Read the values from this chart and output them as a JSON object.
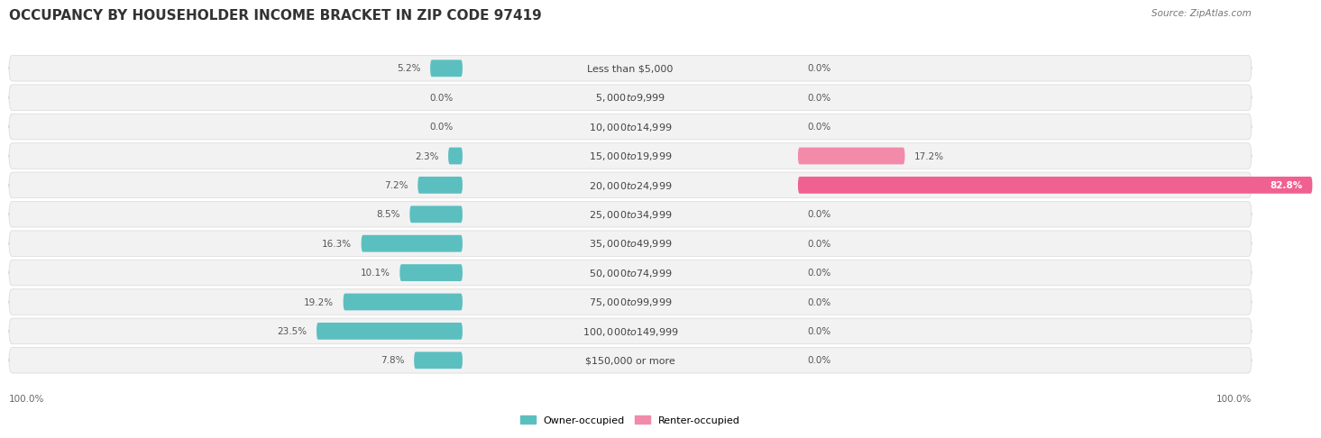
{
  "title": "OCCUPANCY BY HOUSEHOLDER INCOME BRACKET IN ZIP CODE 97419",
  "source": "Source: ZipAtlas.com",
  "categories": [
    "Less than $5,000",
    "$5,000 to $9,999",
    "$10,000 to $14,999",
    "$15,000 to $19,999",
    "$20,000 to $24,999",
    "$25,000 to $34,999",
    "$35,000 to $49,999",
    "$50,000 to $74,999",
    "$75,000 to $99,999",
    "$100,000 to $149,999",
    "$150,000 or more"
  ],
  "owner_pct": [
    5.2,
    0.0,
    0.0,
    2.3,
    7.2,
    8.5,
    16.3,
    10.1,
    19.2,
    23.5,
    7.8
  ],
  "renter_pct": [
    0.0,
    0.0,
    0.0,
    17.2,
    82.8,
    0.0,
    0.0,
    0.0,
    0.0,
    0.0,
    0.0
  ],
  "owner_color": "#5bbfc0",
  "renter_color": "#f28aaa",
  "renter_color_strong": "#f06090",
  "row_bg_color": "#f2f2f2",
  "row_border_color": "#dddddd",
  "title_fontsize": 11,
  "label_fontsize": 8,
  "pct_fontsize": 7.5,
  "source_fontsize": 7.5,
  "legend_fontsize": 8
}
